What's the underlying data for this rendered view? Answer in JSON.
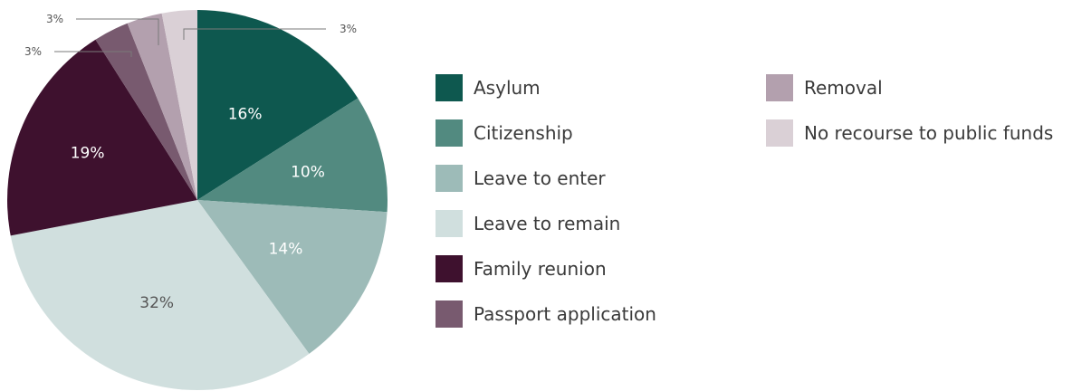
{
  "chart_data": {
    "type": "pie",
    "title": "",
    "categories": [
      "Asylum",
      "Citizenship",
      "Leave to enter",
      "Leave to remain",
      "Family reunion",
      "Passport application",
      "Removal",
      "No recourse to public funds"
    ],
    "values": [
      16,
      10,
      14,
      32,
      19,
      3,
      3,
      3
    ],
    "labels": [
      "16%",
      "10%",
      "14%",
      "32%",
      "19%",
      "3%",
      "3%",
      "3%"
    ],
    "colors": [
      "#0e584f",
      "#528a80",
      "#9dbbb8",
      "#d0dfde",
      "#3e112e",
      "#785a6f",
      "#b3a0ae",
      "#dad0d6"
    ],
    "label_colors": [
      "#ffffff",
      "#ffffff",
      "#ffffff",
      "#555555",
      "#ffffff",
      "#555555",
      "#555555",
      "#555555"
    ],
    "legend": {
      "placement": "right",
      "columns": 2
    }
  }
}
